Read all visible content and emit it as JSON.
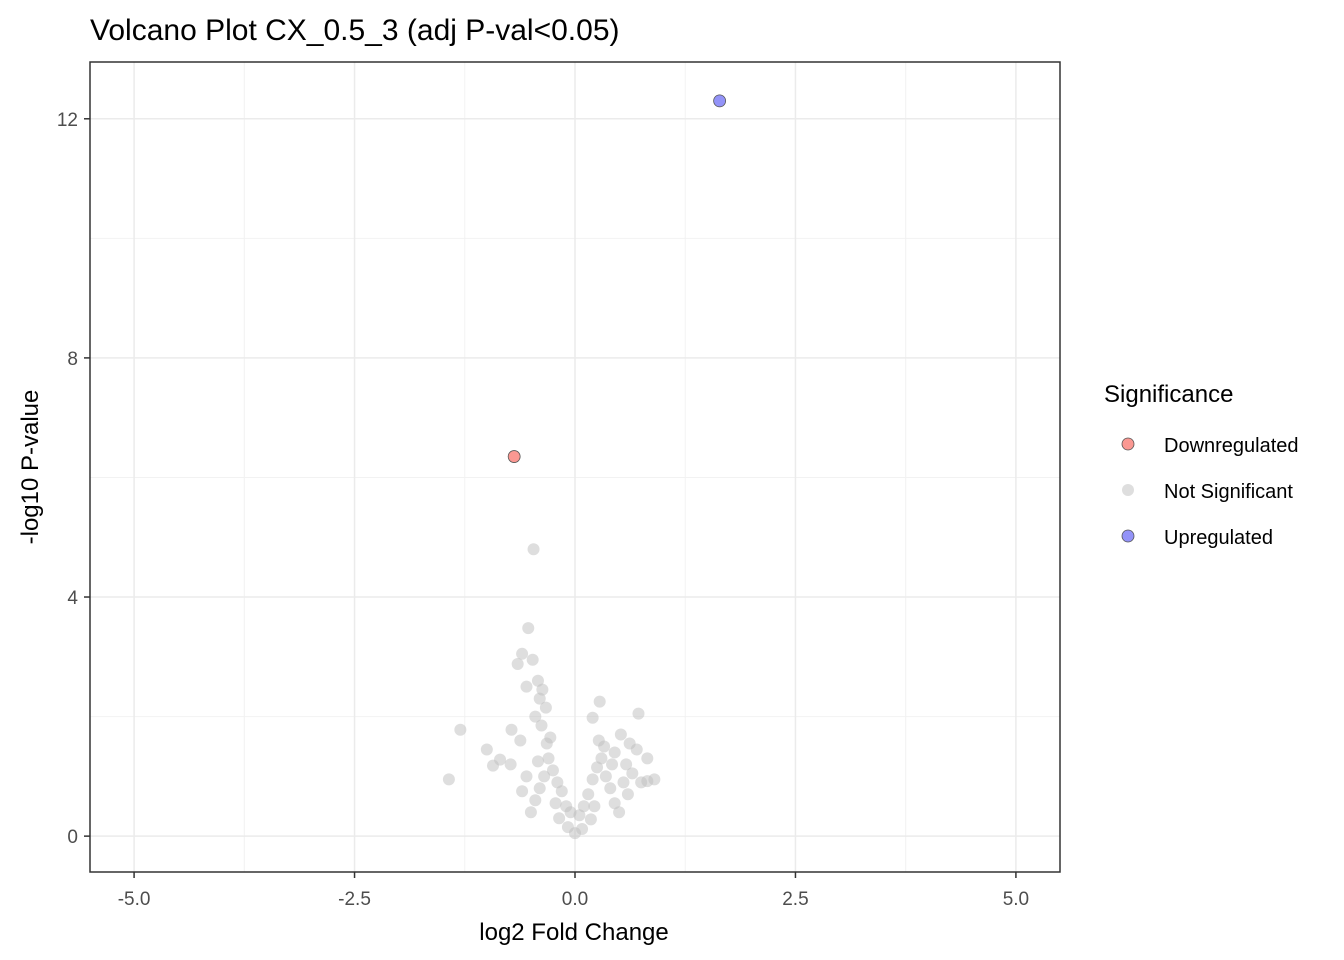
{
  "chart_data": {
    "type": "scatter",
    "title": "Volcano Plot CX_0.5_3 (adj P-val<0.05)",
    "xlabel": "log2 Fold Change",
    "ylabel": "-log10 P-value",
    "xlim": [
      -5.5,
      5.5
    ],
    "ylim": [
      -0.6,
      12.95
    ],
    "x_ticks": [
      -5.0,
      -2.5,
      0.0,
      2.5,
      5.0
    ],
    "x_tick_labels": [
      "-5.0",
      "-2.5",
      "0.0",
      "2.5",
      "5.0"
    ],
    "y_ticks": [
      0,
      4,
      8,
      12
    ],
    "y_tick_labels": [
      "0",
      "4",
      "8",
      "12"
    ],
    "grid": true,
    "legend": {
      "title": "Significance",
      "position": "right",
      "entries": [
        {
          "label": "Downregulated",
          "color": "#F8766D"
        },
        {
          "label": "Not Significant",
          "color": "#BEBEBE"
        },
        {
          "label": "Upregulated",
          "color": "#6F6FF5"
        }
      ]
    },
    "series": [
      {
        "name": "Upregulated",
        "color": "#6F6FF5",
        "points": [
          [
            1.64,
            12.3
          ]
        ]
      },
      {
        "name": "Downregulated",
        "color": "#F8766D",
        "points": [
          [
            -0.69,
            6.35
          ]
        ]
      },
      {
        "name": "Not Significant",
        "color": "#BEBEBE",
        "points": [
          [
            -0.47,
            4.8
          ],
          [
            -0.53,
            3.48
          ],
          [
            -0.6,
            3.05
          ],
          [
            -0.65,
            2.88
          ],
          [
            -0.48,
            2.95
          ],
          [
            -0.42,
            2.6
          ],
          [
            -0.55,
            2.5
          ],
          [
            -0.37,
            2.45
          ],
          [
            -0.4,
            2.3
          ],
          [
            -0.33,
            2.15
          ],
          [
            -0.45,
            2.0
          ],
          [
            -0.38,
            1.85
          ],
          [
            0.28,
            2.25
          ],
          [
            0.72,
            2.05
          ],
          [
            0.2,
            1.98
          ],
          [
            -1.3,
            1.78
          ],
          [
            -1.0,
            1.45
          ],
          [
            -0.72,
            1.78
          ],
          [
            -0.85,
            1.28
          ],
          [
            -0.93,
            1.18
          ],
          [
            -1.43,
            0.95
          ],
          [
            -0.62,
            1.6
          ],
          [
            -0.73,
            1.2
          ],
          [
            0.82,
            1.3
          ],
          [
            0.9,
            0.95
          ],
          [
            0.82,
            0.92
          ],
          [
            0.7,
            1.45
          ],
          [
            0.62,
            1.55
          ],
          [
            0.75,
            0.9
          ],
          [
            0.58,
            1.2
          ],
          [
            0.65,
            1.05
          ],
          [
            0.52,
            1.7
          ],
          [
            0.45,
            1.4
          ],
          [
            -0.1,
            0.5
          ],
          [
            -0.05,
            0.4
          ],
          [
            0.05,
            0.35
          ],
          [
            0.1,
            0.5
          ],
          [
            0.15,
            0.7
          ],
          [
            -0.15,
            0.75
          ],
          [
            -0.2,
            0.9
          ],
          [
            0.2,
            0.95
          ],
          [
            -0.25,
            1.1
          ],
          [
            0.25,
            1.15
          ],
          [
            -0.3,
            1.3
          ],
          [
            0.3,
            1.3
          ],
          [
            -0.32,
            1.55
          ],
          [
            0.33,
            1.5
          ],
          [
            -0.28,
            1.65
          ],
          [
            0.27,
            1.6
          ],
          [
            -0.35,
            1.0
          ],
          [
            0.35,
            1.0
          ],
          [
            -0.4,
            0.8
          ],
          [
            0.4,
            0.8
          ],
          [
            -0.45,
            0.6
          ],
          [
            0.45,
            0.55
          ],
          [
            -0.5,
            0.4
          ],
          [
            0.5,
            0.4
          ],
          [
            -0.08,
            0.15
          ],
          [
            0.08,
            0.12
          ],
          [
            0.0,
            0.05
          ],
          [
            -0.55,
            1.0
          ],
          [
            0.55,
            0.9
          ],
          [
            -0.6,
            0.75
          ],
          [
            0.6,
            0.7
          ],
          [
            -0.42,
            1.25
          ],
          [
            0.42,
            1.2
          ],
          [
            -0.18,
            0.3
          ],
          [
            0.18,
            0.28
          ],
          [
            -0.22,
            0.55
          ],
          [
            0.22,
            0.5
          ]
        ]
      }
    ]
  }
}
